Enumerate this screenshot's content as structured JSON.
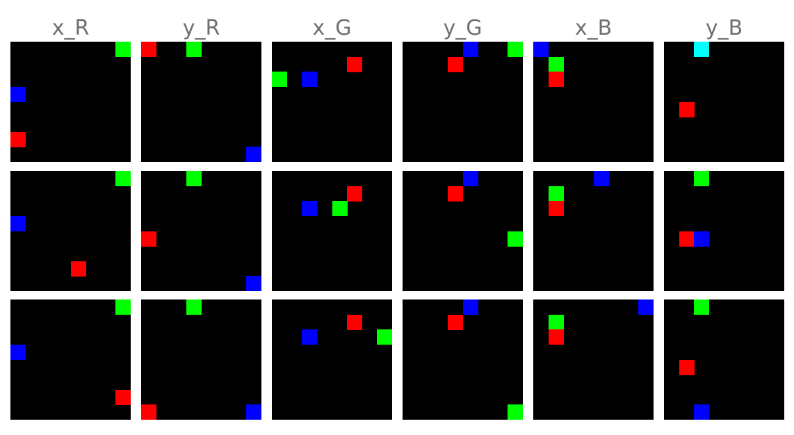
{
  "grid_size": 8,
  "colors": {
    "background": "#000000",
    "page": "#ffffff",
    "title": "#707070",
    "r": "#ff0000",
    "g": "#00ff00",
    "b": "#0000ff",
    "c": "#00ffff"
  },
  "columns": [
    "x_R",
    "y_R",
    "x_G",
    "y_G",
    "x_B",
    "y_B"
  ],
  "rows": [
    [
      [
        {
          "c": "g",
          "col": 7,
          "row": 0
        },
        {
          "c": "b",
          "col": 0,
          "row": 3
        },
        {
          "c": "r",
          "col": 0,
          "row": 6
        }
      ],
      [
        {
          "c": "r",
          "col": 0,
          "row": 0
        },
        {
          "c": "g",
          "col": 3,
          "row": 0
        },
        {
          "c": "b",
          "col": 7,
          "row": 7
        }
      ],
      [
        {
          "c": "r",
          "col": 5,
          "row": 1
        },
        {
          "c": "g",
          "col": 0,
          "row": 2
        },
        {
          "c": "b",
          "col": 2,
          "row": 2
        }
      ],
      [
        {
          "c": "b",
          "col": 4,
          "row": 0
        },
        {
          "c": "g",
          "col": 7,
          "row": 0
        },
        {
          "c": "r",
          "col": 3,
          "row": 1
        }
      ],
      [
        {
          "c": "b",
          "col": 0,
          "row": 0
        },
        {
          "c": "g",
          "col": 1,
          "row": 1
        },
        {
          "c": "r",
          "col": 1,
          "row": 2
        }
      ],
      [
        {
          "c": "c",
          "col": 2,
          "row": 0
        },
        {
          "c": "r",
          "col": 1,
          "row": 4
        }
      ]
    ],
    [
      [
        {
          "c": "g",
          "col": 7,
          "row": 0
        },
        {
          "c": "b",
          "col": 0,
          "row": 3
        },
        {
          "c": "r",
          "col": 4,
          "row": 6
        }
      ],
      [
        {
          "c": "g",
          "col": 3,
          "row": 0
        },
        {
          "c": "r",
          "col": 0,
          "row": 4
        },
        {
          "c": "b",
          "col": 7,
          "row": 7
        }
      ],
      [
        {
          "c": "r",
          "col": 5,
          "row": 1
        },
        {
          "c": "b",
          "col": 2,
          "row": 2
        },
        {
          "c": "g",
          "col": 4,
          "row": 2
        }
      ],
      [
        {
          "c": "b",
          "col": 4,
          "row": 0
        },
        {
          "c": "r",
          "col": 3,
          "row": 1
        },
        {
          "c": "g",
          "col": 7,
          "row": 4
        }
      ],
      [
        {
          "c": "b",
          "col": 4,
          "row": 0
        },
        {
          "c": "g",
          "col": 1,
          "row": 1
        },
        {
          "c": "r",
          "col": 1,
          "row": 2
        }
      ],
      [
        {
          "c": "g",
          "col": 2,
          "row": 0
        },
        {
          "c": "r",
          "col": 1,
          "row": 4
        },
        {
          "c": "b",
          "col": 2,
          "row": 4
        }
      ]
    ],
    [
      [
        {
          "c": "g",
          "col": 7,
          "row": 0
        },
        {
          "c": "b",
          "col": 0,
          "row": 3
        },
        {
          "c": "r",
          "col": 7,
          "row": 6
        }
      ],
      [
        {
          "c": "g",
          "col": 3,
          "row": 0
        },
        {
          "c": "r",
          "col": 0,
          "row": 7
        },
        {
          "c": "b",
          "col": 7,
          "row": 7
        }
      ],
      [
        {
          "c": "r",
          "col": 5,
          "row": 1
        },
        {
          "c": "b",
          "col": 2,
          "row": 2
        },
        {
          "c": "g",
          "col": 7,
          "row": 2
        }
      ],
      [
        {
          "c": "b",
          "col": 4,
          "row": 0
        },
        {
          "c": "r",
          "col": 3,
          "row": 1
        },
        {
          "c": "g",
          "col": 7,
          "row": 7
        }
      ],
      [
        {
          "c": "b",
          "col": 7,
          "row": 0
        },
        {
          "c": "g",
          "col": 1,
          "row": 1
        },
        {
          "c": "r",
          "col": 1,
          "row": 2
        }
      ],
      [
        {
          "c": "g",
          "col": 2,
          "row": 0
        },
        {
          "c": "r",
          "col": 1,
          "row": 4
        },
        {
          "c": "b",
          "col": 2,
          "row": 7
        }
      ]
    ]
  ]
}
